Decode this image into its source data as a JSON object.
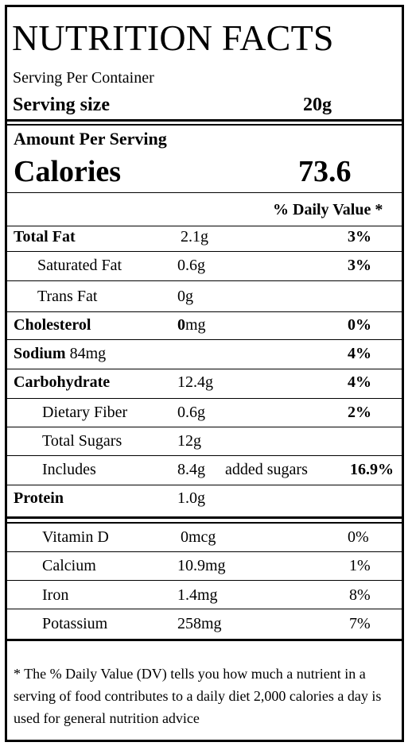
{
  "title": "NUTRITION FACTS",
  "servings_per_container_label": "Serving Per Container",
  "serving_size_label": "Serving size",
  "serving_size_value": "20g",
  "amount_per_serving_label": "Amount Per Serving",
  "calories_label": "Calories",
  "calories_value": "73.6",
  "daily_value_header": "% Daily Value *",
  "nutrients": [
    {
      "name": "Total Fat",
      "amount": "2.1g",
      "dv": "3%"
    },
    {
      "name": "Saturated Fat",
      "amount": "0.6g",
      "dv": "3%"
    },
    {
      "name": "Trans Fat",
      "amount": "0g",
      "dv": ""
    },
    {
      "name": "Cholesterol",
      "amount_bold": "0",
      "amount_rest": "mg",
      "dv": "0%"
    },
    {
      "name": "Sodium",
      "amount": "84mg",
      "dv": "4%"
    },
    {
      "name": "Carbohydrate",
      "amount": "12.4g",
      "dv": "4%"
    },
    {
      "name": "Dietary Fiber",
      "amount": "0.6g",
      "dv": "2%"
    },
    {
      "name": "Total Sugars",
      "amount": "12g",
      "dv": ""
    },
    {
      "name": "Includes",
      "amount": "8.4g",
      "extra": "added sugars",
      "dv": "16.9%"
    },
    {
      "name": "Protein",
      "amount": "1.0g",
      "dv": ""
    }
  ],
  "vitamins": [
    {
      "name": "Vitamin D",
      "amount": "0mcg",
      "dv": "0%"
    },
    {
      "name": "Calcium",
      "amount": "10.9mg",
      "dv": "1%"
    },
    {
      "name": "Iron",
      "amount": "1.4mg",
      "dv": "8%"
    },
    {
      "name": "Potassium",
      "amount": "258mg",
      "dv": "7%"
    }
  ],
  "footnote": "* The % Daily Value (DV) tells you how much a nutrient in a serving of food contributes to a daily diet 2,000 calories a day is used for general nutrition advice"
}
